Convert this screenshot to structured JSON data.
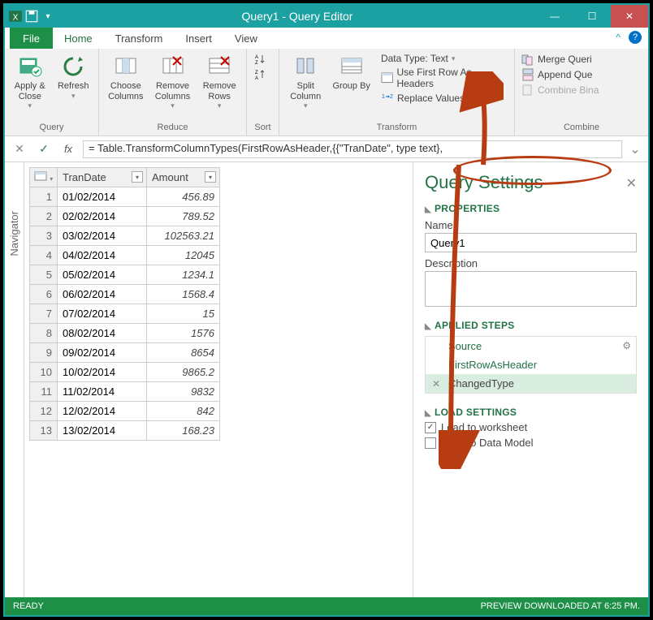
{
  "window": {
    "title": "Query1 - Query Editor"
  },
  "menubar": {
    "file": "File",
    "tabs": [
      "Home",
      "Transform",
      "Insert",
      "View"
    ],
    "active": 0
  },
  "ribbon": {
    "groups": {
      "query": {
        "label": "Query",
        "apply": "Apply &\nClose",
        "refresh": "Refresh"
      },
      "reduce": {
        "label": "Reduce",
        "choose": "Choose\nColumns",
        "removeCols": "Remove\nColumns",
        "removeRows": "Remove\nRows"
      },
      "sort": {
        "label": "Sort"
      },
      "transform": {
        "label": "Transform",
        "split": "Split\nColumn",
        "group": "Group\nBy",
        "dtype": "Data Type: Text",
        "firstrow": "Use First Row As Headers",
        "replace": "Replace Values"
      },
      "combine": {
        "label": "Combine",
        "merge": "Merge Queri",
        "append": "Append Que",
        "combine": "Combine Bina"
      }
    }
  },
  "formula": {
    "text": "= Table.TransformColumnTypes(FirstRowAsHeader,{{\"TranDate\", type text},"
  },
  "nav": {
    "label": "Navigator"
  },
  "grid": {
    "columns": [
      "TranDate",
      "Amount"
    ],
    "rows": [
      {
        "n": "1",
        "d": "01/02/2014",
        "a": "456.89"
      },
      {
        "n": "2",
        "d": "02/02/2014",
        "a": "789.52"
      },
      {
        "n": "3",
        "d": "03/02/2014",
        "a": "102563.21"
      },
      {
        "n": "4",
        "d": "04/02/2014",
        "a": "12045"
      },
      {
        "n": "5",
        "d": "05/02/2014",
        "a": "1234.1"
      },
      {
        "n": "6",
        "d": "06/02/2014",
        "a": "1568.4"
      },
      {
        "n": "7",
        "d": "07/02/2014",
        "a": "15"
      },
      {
        "n": "8",
        "d": "08/02/2014",
        "a": "1576"
      },
      {
        "n": "9",
        "d": "09/02/2014",
        "a": "8654"
      },
      {
        "n": "10",
        "d": "10/02/2014",
        "a": "9865.2"
      },
      {
        "n": "11",
        "d": "11/02/2014",
        "a": "9832"
      },
      {
        "n": "12",
        "d": "12/02/2014",
        "a": "842"
      },
      {
        "n": "13",
        "d": "13/02/2014",
        "a": "168.23"
      }
    ]
  },
  "qs": {
    "title": "Query Settings",
    "properties": "PROPERTIES",
    "nameLabel": "Name",
    "name": "Query1",
    "descLabel": "Description",
    "applied": "APPLIED STEPS",
    "steps": [
      {
        "t": "Source",
        "gear": true
      },
      {
        "t": "FirstRowAsHeader"
      },
      {
        "t": "ChangedType",
        "sel": true,
        "x": true
      }
    ],
    "load": "LOAD SETTINGS",
    "loadWs": "Load to worksheet",
    "loadDm": "Load to Data Model"
  },
  "status": {
    "left": "READY",
    "right": "PREVIEW DOWNLOADED AT 6:25 PM."
  },
  "colors": {
    "teal": "#1ba1a1",
    "green": "#217346",
    "anno": "#b83c12"
  }
}
